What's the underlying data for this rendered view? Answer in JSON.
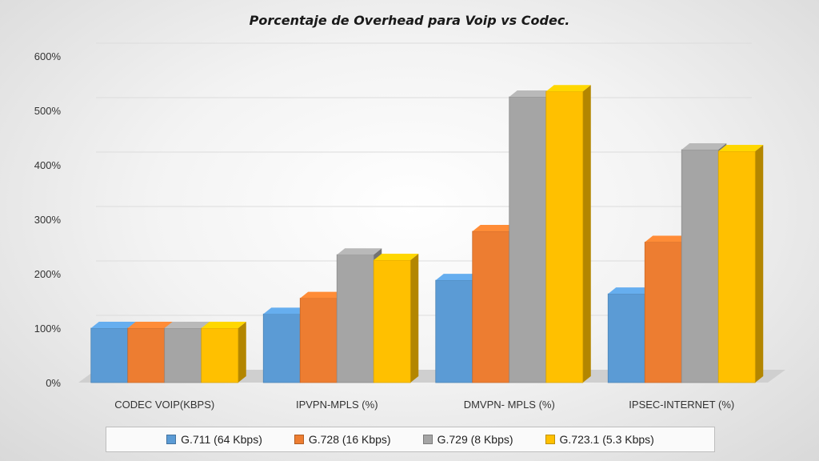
{
  "chart_data": {
    "type": "bar",
    "title": "Porcentaje de Overhead para Voip vs Codec.",
    "categories": [
      "CODEC VOIP(KBPS)",
      "IPVPN-MPLS (%)",
      "DMVPN- MPLS (%)",
      "IPSEC-INTERNET  (%)"
    ],
    "series": [
      {
        "name": "G.711 (64 Kbps)",
        "values": [
          100,
          126,
          188,
          163
        ],
        "color": "#5b9bd5"
      },
      {
        "name": "G.728 (16 Kbps)",
        "values": [
          100,
          155,
          278,
          258
        ],
        "color": "#ed7d31"
      },
      {
        "name": "G.729 (8 Kbps)",
        "values": [
          100,
          235,
          525,
          428
        ],
        "color": "#a5a5a5"
      },
      {
        "name": "G.723.1 (5.3 Kbps)",
        "values": [
          100,
          225,
          535,
          425
        ],
        "color": "#ffc000"
      }
    ],
    "ylim": [
      0,
      600
    ],
    "yticks": [
      "0%",
      "100%",
      "200%",
      "300%",
      "400%",
      "500%",
      "600%"
    ],
    "grid": true,
    "legend_position": "bottom",
    "style": "3d-clustered-column"
  }
}
